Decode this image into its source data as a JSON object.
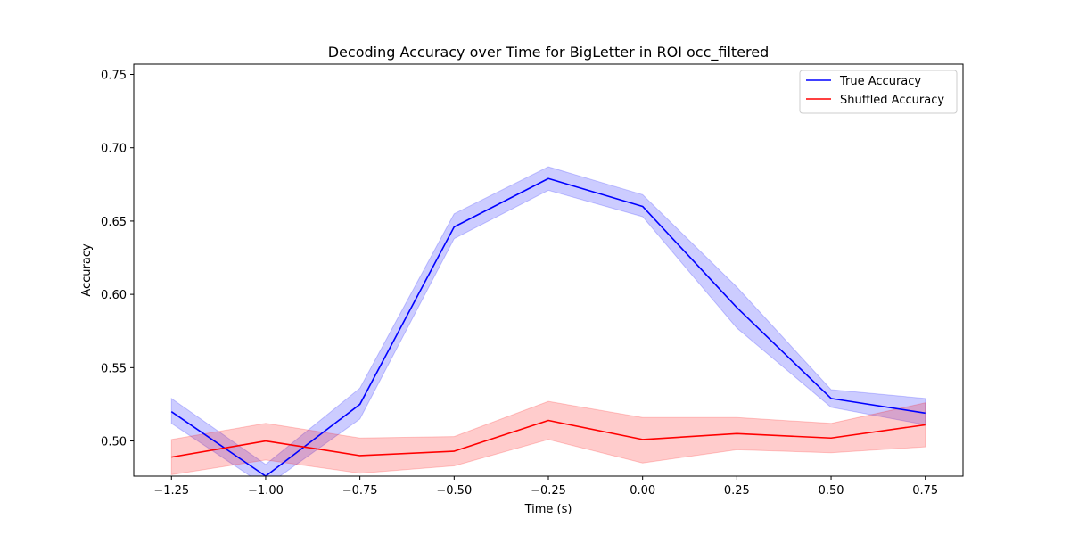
{
  "chart_data": {
    "type": "line",
    "title": "Decoding Accuracy over Time for BigLetter in ROI occ_filtered",
    "xlabel": "Time (s)",
    "ylabel": "Accuracy",
    "xlim": [
      -1.35,
      0.85
    ],
    "ylim": [
      0.476,
      0.757
    ],
    "x": [
      -1.25,
      -1.0,
      -0.75,
      -0.5,
      -0.25,
      0.0,
      0.25,
      0.5,
      0.75
    ],
    "xticks": [
      -1.25,
      -1.0,
      -0.75,
      -0.5,
      -0.25,
      0.0,
      0.25,
      0.5,
      0.75
    ],
    "xtick_labels": [
      "−1.25",
      "−1.00",
      "−0.75",
      "−0.50",
      "−0.25",
      "0.00",
      "0.25",
      "0.50",
      "0.75"
    ],
    "yticks": [
      0.5,
      0.55,
      0.6,
      0.65,
      0.7,
      0.75
    ],
    "ytick_labels": [
      "0.50",
      "0.55",
      "0.60",
      "0.65",
      "0.70",
      "0.75"
    ],
    "grid": false,
    "legend_position": "top-right",
    "series": [
      {
        "name": "True Accuracy",
        "color": "#0000ff",
        "band_color": "#0000ff",
        "values": [
          0.52,
          0.476,
          0.525,
          0.646,
          0.679,
          0.66,
          0.591,
          0.529,
          0.519
        ],
        "lower": [
          0.512,
          0.469,
          0.515,
          0.638,
          0.671,
          0.653,
          0.577,
          0.523,
          0.511
        ],
        "upper": [
          0.529,
          0.484,
          0.536,
          0.655,
          0.687,
          0.668,
          0.605,
          0.535,
          0.529
        ]
      },
      {
        "name": "Shuffled Accuracy",
        "color": "#ff0000",
        "band_color": "#ff0000",
        "values": [
          0.489,
          0.5,
          0.49,
          0.493,
          0.514,
          0.501,
          0.505,
          0.502,
          0.511
        ],
        "lower": [
          0.477,
          0.487,
          0.478,
          0.483,
          0.501,
          0.485,
          0.494,
          0.492,
          0.496
        ],
        "upper": [
          0.501,
          0.512,
          0.502,
          0.503,
          0.527,
          0.516,
          0.516,
          0.512,
          0.526
        ]
      }
    ]
  }
}
